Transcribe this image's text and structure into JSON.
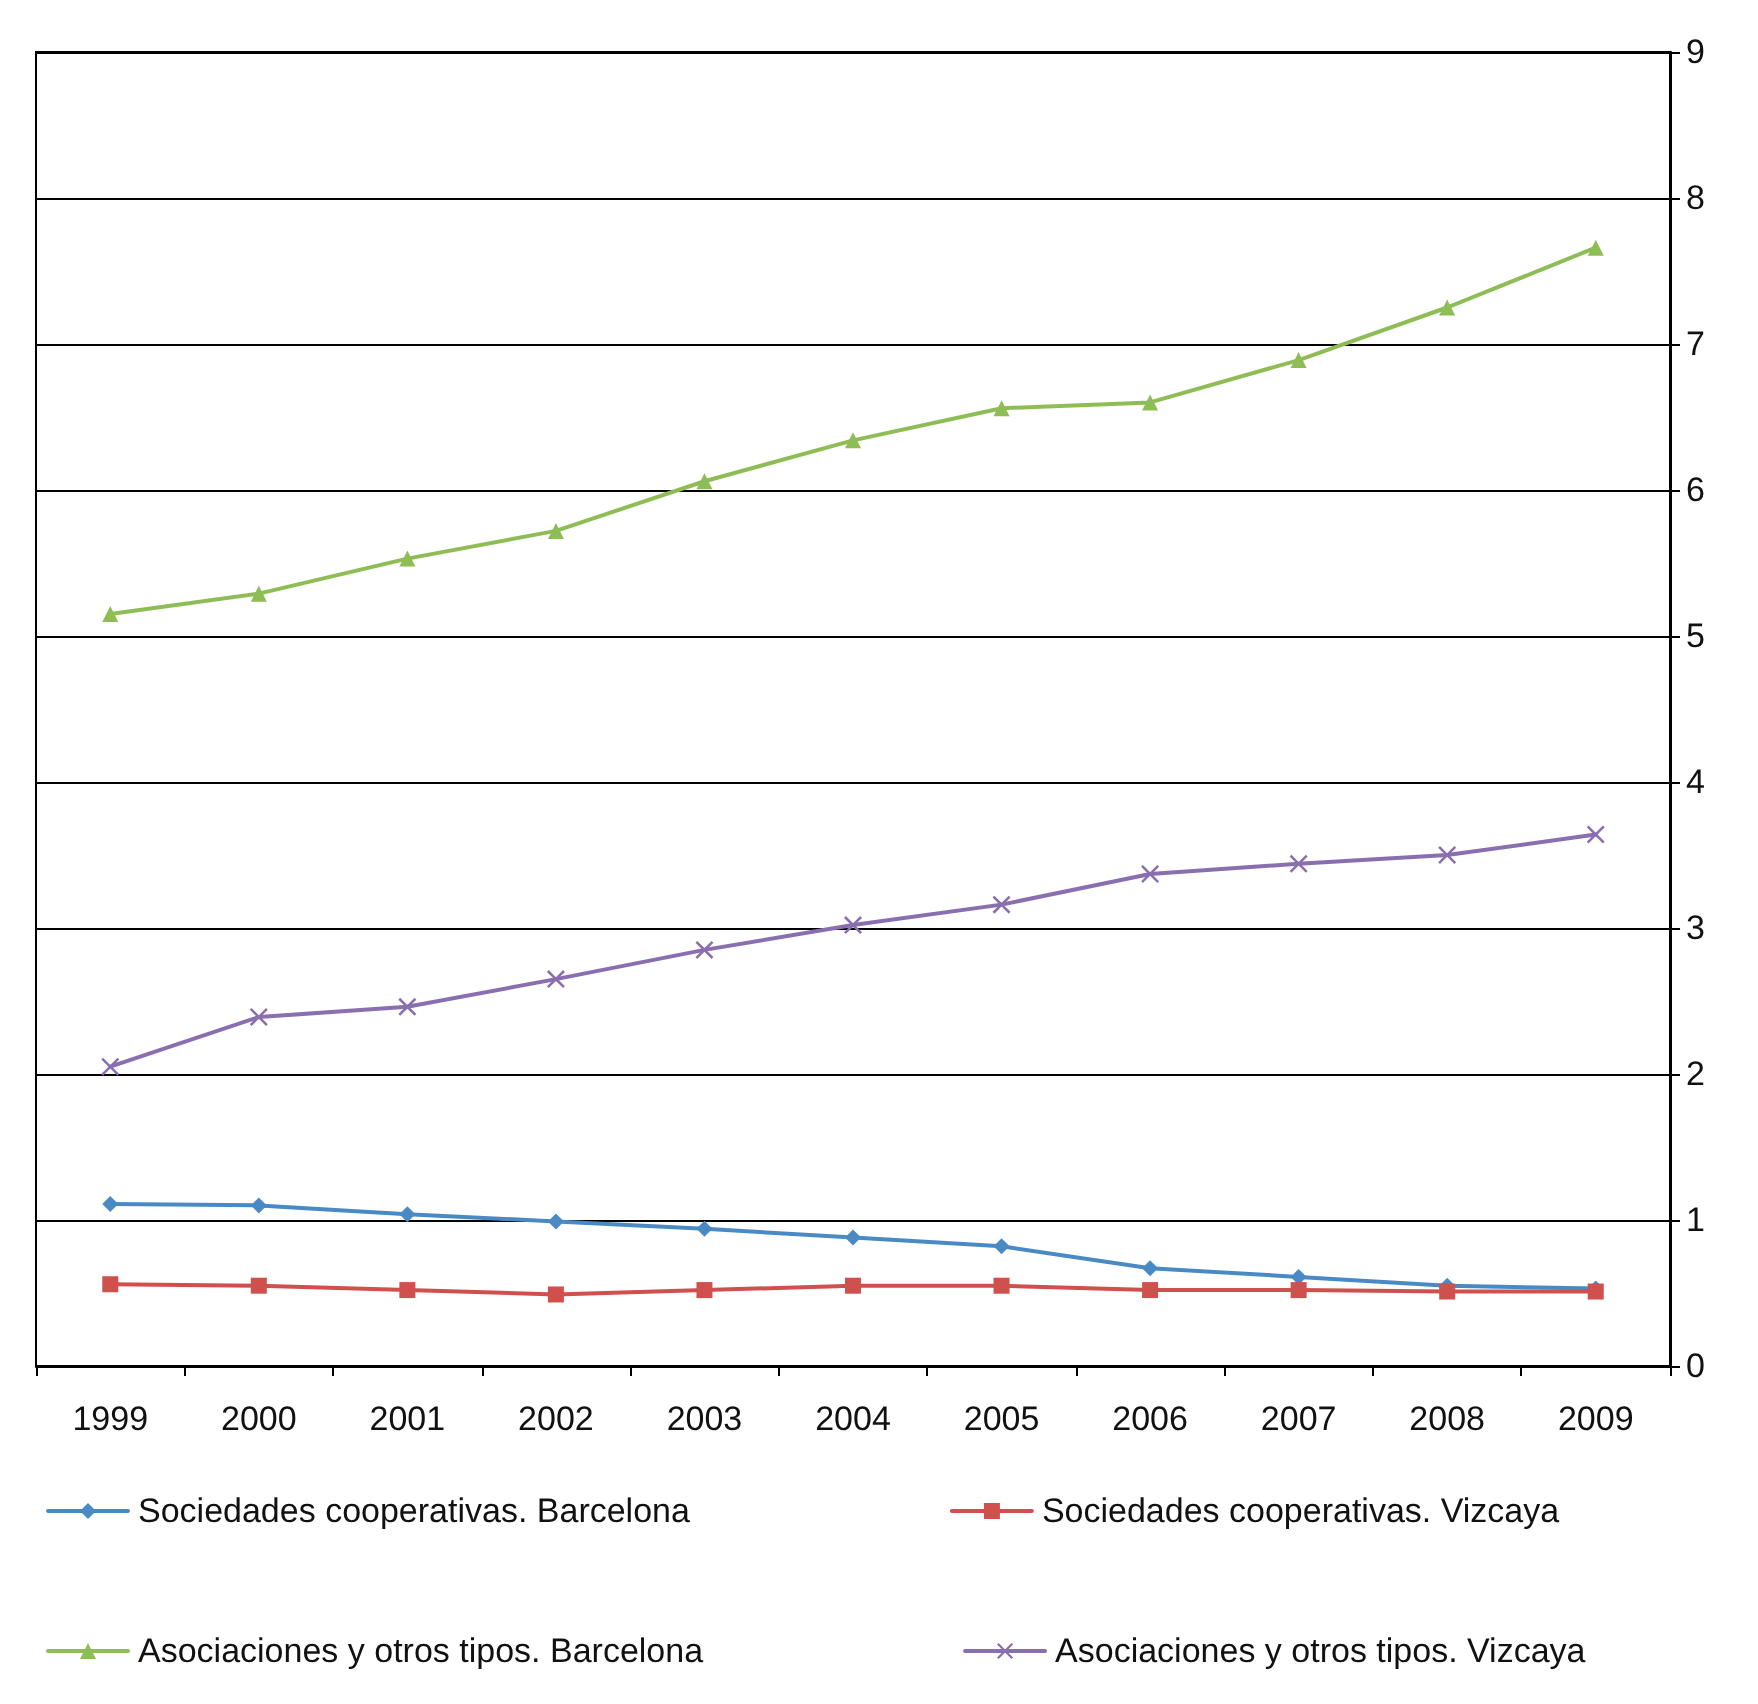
{
  "chart_data": {
    "type": "line",
    "categories": [
      "1999",
      "2000",
      "2001",
      "2002",
      "2003",
      "2004",
      "2005",
      "2006",
      "2007",
      "2008",
      "2009"
    ],
    "ylim": [
      0,
      9
    ],
    "yticks": [
      0,
      1,
      2,
      3,
      4,
      5,
      6,
      7,
      8,
      9
    ],
    "grid": "y",
    "legend": "bottom",
    "line_style": "solid",
    "series": [
      {
        "name": "Sociedades cooperativas. Barcelona",
        "color": "#4a8ac4",
        "marker": "diamond",
        "values": [
          1.11,
          1.1,
          1.04,
          0.99,
          0.94,
          0.88,
          0.82,
          0.67,
          0.61,
          0.55,
          0.53
        ]
      },
      {
        "name": "Sociedades cooperativas. Vizcaya",
        "color": "#cf504d",
        "marker": "square",
        "values": [
          0.56,
          0.55,
          0.52,
          0.49,
          0.52,
          0.55,
          0.55,
          0.52,
          0.52,
          0.51,
          0.51
        ]
      },
      {
        "name": "Asociaciones y otros tipos. Barcelona",
        "color": "#8fbd55",
        "marker": "triangle",
        "values": [
          5.15,
          5.29,
          5.53,
          5.72,
          6.06,
          6.34,
          6.56,
          6.6,
          6.89,
          7.25,
          7.66
        ]
      },
      {
        "name": "Asociaciones y otros tipos. Vizcaya",
        "color": "#8a6fb0",
        "marker": "cross",
        "values": [
          2.05,
          2.39,
          2.46,
          2.65,
          2.85,
          3.02,
          3.16,
          3.37,
          3.44,
          3.5,
          3.64
        ]
      }
    ]
  }
}
